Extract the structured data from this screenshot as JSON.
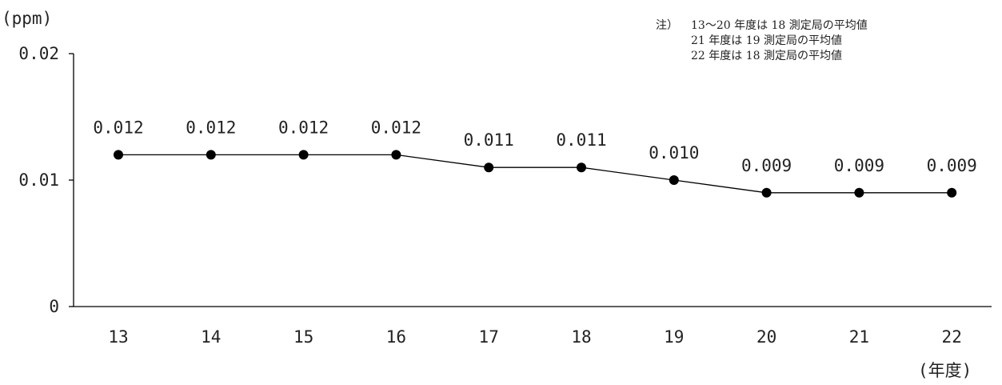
{
  "chart_data": {
    "type": "line",
    "y_unit": "(ppm)",
    "x_unit": "(年度)",
    "categories": [
      "13",
      "14",
      "15",
      "16",
      "17",
      "18",
      "19",
      "20",
      "21",
      "22"
    ],
    "values": [
      0.012,
      0.012,
      0.012,
      0.012,
      0.011,
      0.011,
      0.01,
      0.009,
      0.009,
      0.009
    ],
    "data_labels": [
      "0.012",
      "0.012",
      "0.012",
      "0.012",
      "0.011",
      "0.011",
      "0.010",
      "0.009",
      "0.009",
      "0.009"
    ],
    "ylim": [
      0,
      0.02
    ],
    "y_ticks": [
      "0",
      "0.01",
      "0.02"
    ],
    "grid": false,
    "legend": "none",
    "note": {
      "prefix": "注）",
      "lines": [
        "13〜20 年度は 18 測定局の平均値",
        "21 年度は 19 測定局の平均値",
        "22 年度は 18 測定局の平均値"
      ]
    }
  }
}
